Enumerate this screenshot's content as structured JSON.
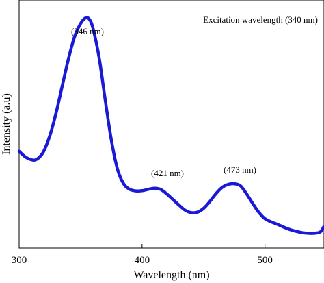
{
  "chart_data": {
    "type": "line",
    "title": "",
    "xlabel": "Wavelength (nm)",
    "ylabel": "Intensity (a.u)",
    "xlim": [
      300,
      548
    ],
    "ylim": [
      0,
      1
    ],
    "x_ticks": [
      300,
      400,
      500
    ],
    "x_tick_labels": [
      "300",
      "400",
      "500"
    ],
    "grid": false,
    "legend": "none",
    "line_color": "#1a1ad6",
    "annotations": [
      {
        "text": "Excitation wavelength (340 nm)",
        "position": "top-right"
      },
      {
        "text": "(346 nm)",
        "x": 346
      },
      {
        "text": "(421 nm)",
        "x": 421
      },
      {
        "text": "(473 nm)",
        "x": 473
      }
    ],
    "series": [
      {
        "x": [
          300,
          305,
          310,
          313,
          316,
          320,
          325,
          330,
          335,
          340,
          345,
          350,
          354,
          357,
          360,
          365,
          370,
          375,
          380,
          385,
          390,
          395,
          400,
          405,
          410,
          415,
          420,
          425,
          430,
          435,
          440,
          445,
          450,
          455,
          460,
          465,
          470,
          475,
          480,
          485,
          490,
          495,
          500,
          505,
          510,
          515,
          520,
          525,
          530,
          535,
          540,
          545,
          548
        ],
        "y": [
          0.38,
          0.355,
          0.342,
          0.341,
          0.351,
          0.38,
          0.45,
          0.55,
          0.67,
          0.79,
          0.89,
          0.95,
          0.975,
          0.97,
          0.93,
          0.8,
          0.61,
          0.43,
          0.3,
          0.235,
          0.21,
          0.203,
          0.204,
          0.21,
          0.215,
          0.21,
          0.19,
          0.165,
          0.14,
          0.117,
          0.106,
          0.108,
          0.125,
          0.155,
          0.19,
          0.218,
          0.232,
          0.235,
          0.226,
          0.19,
          0.147,
          0.107,
          0.079,
          0.065,
          0.054,
          0.042,
          0.031,
          0.023,
          0.017,
          0.014,
          0.014,
          0.02,
          0.045
        ]
      }
    ]
  }
}
